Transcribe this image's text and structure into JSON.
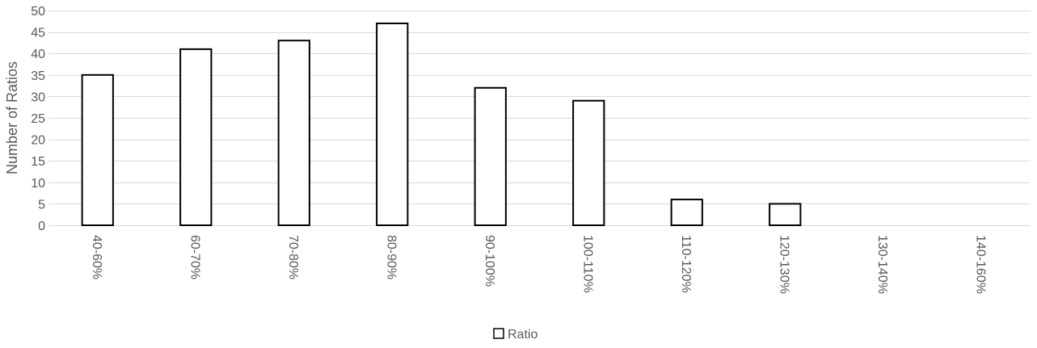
{
  "chart_data": {
    "type": "bar",
    "title": "",
    "xlabel": "",
    "ylabel": "Number of Ratios",
    "categories": [
      "40-60%",
      "60-70%",
      "70-80%",
      "80-90%",
      "90-100%",
      "100-110%",
      "110-120%",
      "120-130%",
      "130-140%",
      "140-160%"
    ],
    "series": [
      {
        "name": "Ratio",
        "values": [
          35,
          41,
          43,
          47,
          32,
          29,
          6,
          5,
          0,
          0
        ]
      }
    ],
    "ylim": [
      0,
      50
    ],
    "yticks": [
      0,
      5,
      10,
      15,
      20,
      25,
      30,
      35,
      40,
      45,
      50
    ],
    "grid": true,
    "legend": "bottom-center",
    "colors": {
      "bar_fill": "#ffffff",
      "bar_stroke": "#000000",
      "grid": "#d9d9d9",
      "text": "#595959"
    }
  }
}
